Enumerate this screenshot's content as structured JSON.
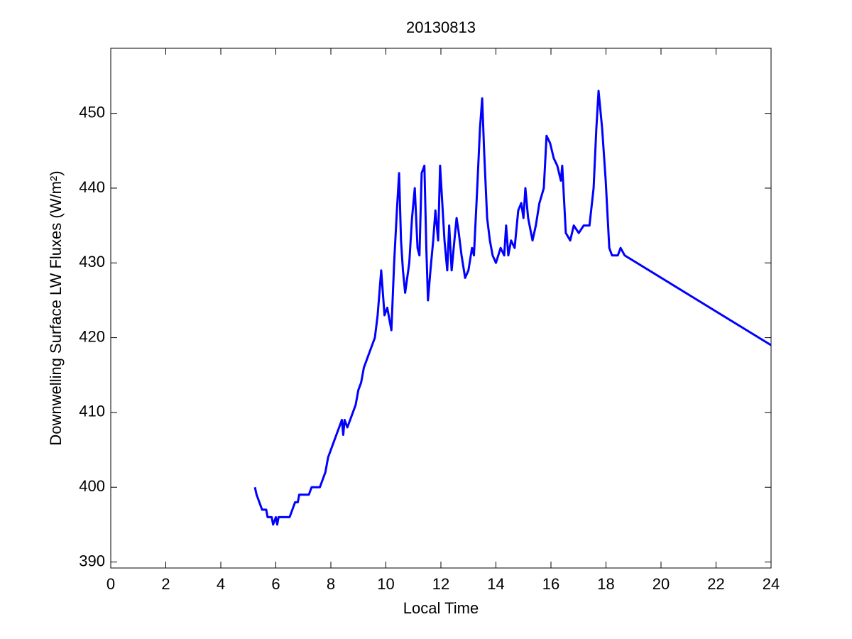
{
  "chart_data": {
    "type": "line",
    "title": "20130813",
    "xlabel": "Local Time",
    "ylabel": "Downwelling Surface LW Fluxes (W/m²)",
    "x": [
      5.24,
      5.3,
      5.4,
      5.5,
      5.65,
      5.7,
      5.85,
      5.9,
      6.0,
      6.05,
      6.1,
      6.5,
      6.6,
      6.7,
      6.8,
      6.85,
      7.2,
      7.3,
      7.6,
      7.7,
      7.8,
      7.9,
      8.0,
      8.1,
      8.2,
      8.3,
      8.4,
      8.45,
      8.5,
      8.6,
      8.7,
      8.8,
      8.9,
      9.0,
      9.1,
      9.2,
      9.3,
      9.4,
      9.5,
      9.6,
      9.7,
      9.83,
      9.95,
      10.05,
      10.2,
      10.3,
      10.4,
      10.48,
      10.55,
      10.62,
      10.7,
      10.85,
      10.95,
      11.05,
      11.15,
      11.22,
      11.3,
      11.4,
      11.47,
      11.53,
      11.62,
      11.72,
      11.8,
      11.9,
      11.97,
      12.13,
      12.23,
      12.3,
      12.39,
      12.49,
      12.57,
      12.65,
      12.75,
      12.88,
      13.0,
      13.13,
      13.2,
      13.32,
      13.42,
      13.5,
      13.57,
      13.68,
      13.78,
      13.88,
      14.0,
      14.17,
      14.3,
      14.37,
      14.45,
      14.55,
      14.68,
      14.81,
      14.92,
      15.0,
      15.07,
      15.17,
      15.33,
      15.45,
      15.58,
      15.74,
      15.84,
      15.97,
      16.1,
      16.23,
      16.36,
      16.41,
      16.54,
      16.7,
      16.83,
      17.01,
      17.19,
      17.4,
      17.55,
      17.65,
      17.73,
      17.86,
      17.99,
      18.12,
      18.22,
      18.43,
      18.53,
      18.68,
      24
    ],
    "series": [
      {
        "color": "#0000ff",
        "values": [
          400,
          399,
          398,
          397,
          397,
          396,
          396,
          395,
          396,
          395,
          396,
          396,
          397,
          398,
          398,
          399,
          399,
          400,
          400,
          401,
          402,
          404,
          405,
          406,
          407,
          408,
          409,
          407,
          409,
          408,
          409,
          410,
          411,
          413,
          414,
          416,
          417,
          418,
          419,
          420,
          423,
          429,
          423,
          424,
          421,
          430,
          437,
          442,
          433,
          429,
          426,
          430,
          436,
          440,
          432,
          431,
          442,
          443,
          432,
          425,
          429,
          433,
          437,
          433,
          443,
          433,
          429,
          435,
          429,
          433,
          436,
          434,
          431,
          428,
          429,
          432,
          431,
          440,
          448,
          452,
          445,
          436,
          433,
          431,
          430,
          432,
          431,
          435,
          431,
          433,
          432,
          437,
          438,
          436,
          440,
          436,
          433,
          435,
          438,
          440,
          447,
          446,
          444,
          443,
          441,
          443,
          434,
          433,
          435,
          434,
          435,
          435,
          440,
          448,
          453,
          448,
          441,
          432,
          431,
          431,
          432,
          431,
          419
        ]
      }
    ],
    "xlim": [
      0,
      24
    ],
    "xticks": [
      0,
      2,
      4,
      6,
      8,
      10,
      12,
      14,
      16,
      18,
      20,
      22,
      24
    ],
    "ylim": [
      389.2,
      458.7
    ],
    "yticks": [
      390,
      400,
      410,
      420,
      430,
      440,
      450
    ],
    "grid": false
  }
}
